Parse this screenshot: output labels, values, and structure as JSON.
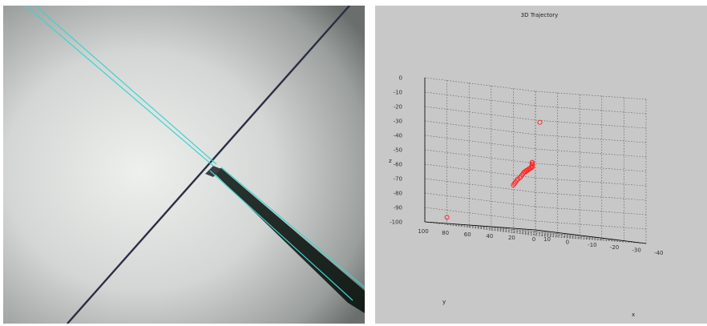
{
  "photo": {
    "label": "microscope-camera-view",
    "colors": {
      "lens_light": "#e6e8e6",
      "lens_dark": "#6e7270",
      "crack": "#2a2e44",
      "probe": "#1b2620",
      "overlay": "#3fd2d2"
    }
  },
  "chart_data": {
    "type": "scatter",
    "title": "3D Trajectory",
    "xlabel": "x",
    "ylabel": "y",
    "zlabel": "z",
    "x_ticks": [
      "10",
      "0",
      "-10",
      "-20",
      "-30",
      "-40"
    ],
    "y_ticks": [
      "100",
      "80",
      "60",
      "40",
      "20",
      "0"
    ],
    "z_ticks": [
      "0",
      "-10",
      "-20",
      "-30",
      "-40",
      "-50",
      "-60",
      "-70",
      "-80",
      "-90",
      "-100"
    ],
    "xlim": [
      -40,
      10
    ],
    "ylim": [
      0,
      100
    ],
    "zlim": [
      -100,
      0
    ],
    "grid": true,
    "marker_color": "#ff2020",
    "points": [
      {
        "x": 0,
        "y": 100,
        "z": -95
      },
      {
        "x": 8,
        "y": 0,
        "z": -25
      },
      {
        "x": -16,
        "y": 72,
        "z": -68
      },
      {
        "x": -15,
        "y": 69,
        "z": -67
      },
      {
        "x": -14,
        "y": 66,
        "z": -66
      },
      {
        "x": -13,
        "y": 63,
        "z": -65
      },
      {
        "x": -12,
        "y": 60,
        "z": -64
      },
      {
        "x": -11,
        "y": 56,
        "z": -63
      },
      {
        "x": -10,
        "y": 53,
        "z": -62
      },
      {
        "x": -9,
        "y": 50,
        "z": -61
      },
      {
        "x": -8,
        "y": 47,
        "z": -60
      },
      {
        "x": -7,
        "y": 44,
        "z": -59
      },
      {
        "x": -6,
        "y": 41,
        "z": -59
      },
      {
        "x": -5,
        "y": 38,
        "z": -58
      },
      {
        "x": -4,
        "y": 35,
        "z": -58
      },
      {
        "x": -3,
        "y": 32,
        "z": -57
      },
      {
        "x": -2,
        "y": 29,
        "z": -57
      },
      {
        "x": -1,
        "y": 26,
        "z": -56
      },
      {
        "x": 0,
        "y": 23,
        "z": -56
      },
      {
        "x": 1,
        "y": 21,
        "z": -55
      },
      {
        "x": 2,
        "y": 19,
        "z": -55
      },
      {
        "x": 3,
        "y": 17,
        "z": -54
      },
      {
        "x": 4,
        "y": 15,
        "z": -54
      },
      {
        "x": 5,
        "y": 13,
        "z": -53
      },
      {
        "x": 6,
        "y": 11,
        "z": -53
      }
    ]
  }
}
